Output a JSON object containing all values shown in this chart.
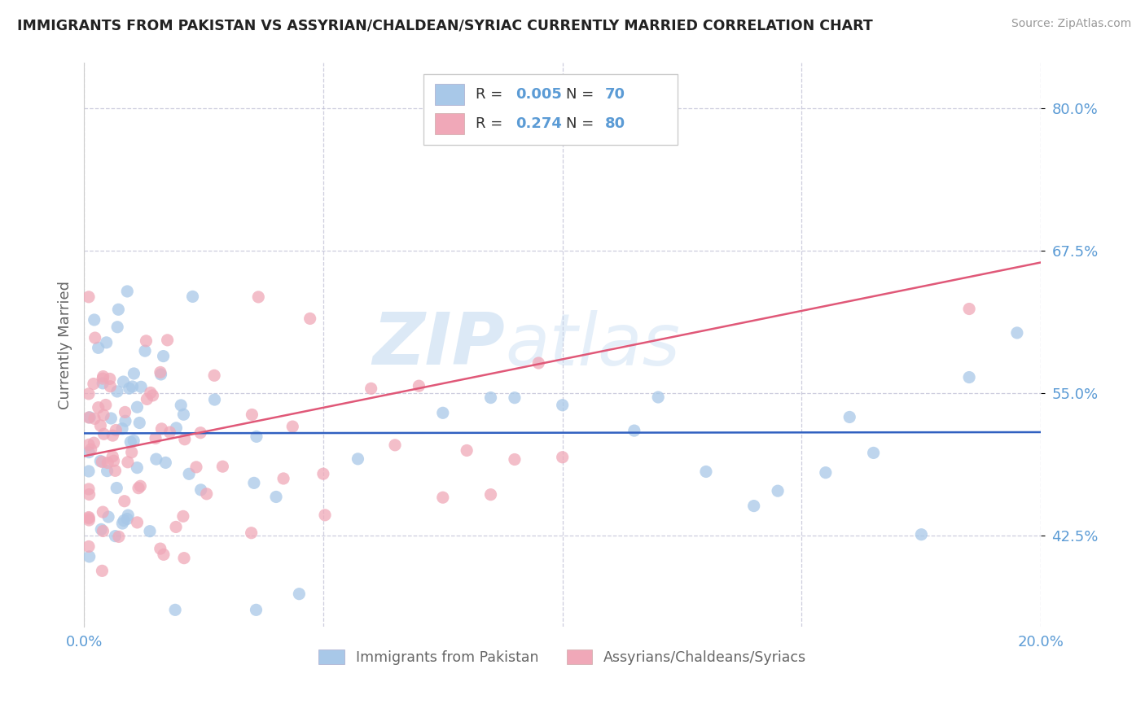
{
  "title": "IMMIGRANTS FROM PAKISTAN VS ASSYRIAN/CHALDEAN/SYRIAC CURRENTLY MARRIED CORRELATION CHART",
  "source": "Source: ZipAtlas.com",
  "ylabel": "Currently Married",
  "x_min": 0.0,
  "x_max": 0.2,
  "y_min": 0.345,
  "y_max": 0.84,
  "y_ticks": [
    0.425,
    0.55,
    0.675,
    0.8
  ],
  "y_tick_labels": [
    "42.5%",
    "55.0%",
    "67.5%",
    "80.0%"
  ],
  "x_ticks": [
    0.0,
    0.05,
    0.1,
    0.15,
    0.2
  ],
  "x_tick_labels": [
    "0.0%",
    "",
    "",
    "",
    "20.0%"
  ],
  "blue_color": "#A8C8E8",
  "pink_color": "#F0A8B8",
  "blue_line_color": "#3060C0",
  "pink_line_color": "#E05878",
  "R_blue": 0.005,
  "N_blue": 70,
  "R_pink": 0.274,
  "N_pink": 80,
  "legend_label_blue": "Immigrants from Pakistan",
  "legend_label_pink": "Assyrians/Chaldeans/Syriacs",
  "watermark_left": "ZIP",
  "watermark_right": "atlas",
  "axis_color": "#5B9BD5",
  "label_color": "#666666",
  "background_color": "#FFFFFF",
  "grid_color": "#B8B8D0",
  "blue_line_y0": 0.515,
  "blue_line_y1": 0.516,
  "pink_line_y0": 0.495,
  "pink_line_y1": 0.665
}
